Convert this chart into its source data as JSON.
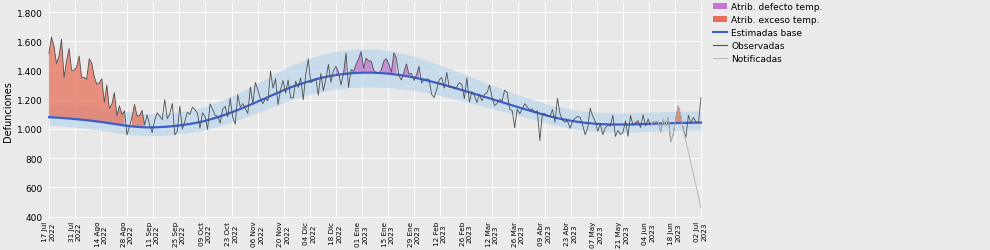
{
  "ylabel": "Defunciones",
  "ylim": [
    380,
    1870
  ],
  "yticks": [
    400,
    600,
    800,
    1000,
    1200,
    1400,
    1600,
    1800
  ],
  "ytick_labels": [
    "400",
    "600",
    "800",
    "1.000",
    "1.200",
    "1.400",
    "1.600",
    "1.800"
  ],
  "legend_labels": [
    "Atrib. defecto temp.",
    "Atrib. exceso temp.",
    "Estimadas base",
    "Observadas",
    "Notificadas"
  ],
  "legend_colors_patch": [
    "#c77dca",
    "#e8705a",
    "#4060b8",
    "#606060",
    "#b8b8b8"
  ],
  "n_points": 260,
  "x_tick_labels": [
    "17 Jul\n2022",
    "31 Jul\n2022",
    "14 Ago\n2022",
    "28 Ago\n2022",
    "11 Sep\n2022",
    "25 Sep\n2022",
    "09 Oct\n2022",
    "23 Oct\n2022",
    "06 Nov\n2022",
    "20 Nov\n2022",
    "04 Dic\n2022",
    "18 Dic\n2022",
    "01 Ene\n2023",
    "15 Ene\n2023",
    "29 Ene\n2023",
    "12 Feb\n2023",
    "26 Feb\n2023",
    "12 Mar\n2023",
    "26 Mar\n2023",
    "09 Abr\n2023",
    "23 Abr\n2023",
    "07 May\n2023",
    "21 May\n2023",
    "04 Jun\n2023",
    "18 Jun\n2023",
    "02 Jul\n2023"
  ],
  "baseline_points": [
    1080,
    1075,
    1068,
    1060,
    1050,
    1038,
    1025,
    1015,
    1010,
    1012,
    1018,
    1028,
    1042,
    1062,
    1088,
    1118,
    1152,
    1188,
    1225,
    1262,
    1295,
    1322,
    1346,
    1364,
    1376,
    1383,
    1385,
    1382,
    1374,
    1362,
    1346,
    1326,
    1304,
    1280,
    1255,
    1230,
    1204,
    1178,
    1152,
    1127,
    1102,
    1080,
    1062,
    1048,
    1038,
    1032,
    1030,
    1030,
    1032,
    1035,
    1038,
    1040,
    1042,
    1043
  ],
  "band_lower_offset": [
    55,
    55,
    56,
    57,
    58,
    58,
    58,
    57,
    57,
    58,
    58,
    58,
    60,
    62,
    65,
    68,
    72,
    76,
    80,
    84,
    88,
    92,
    95,
    97,
    98,
    98,
    98,
    97,
    95,
    92,
    88,
    84,
    80,
    76,
    72,
    68,
    64,
    60,
    57,
    55,
    53,
    52,
    52,
    52,
    52,
    52,
    52,
    52,
    52,
    52,
    52,
    52,
    52,
    52
  ],
  "band_upper_offset": [
    85,
    87,
    90,
    93,
    95,
    96,
    96,
    95,
    93,
    92,
    92,
    93,
    96,
    100,
    106,
    113,
    120,
    128,
    136,
    144,
    150,
    156,
    160,
    162,
    163,
    163,
    162,
    160,
    156,
    150,
    143,
    135,
    127,
    119,
    111,
    103,
    96,
    90,
    85,
    82,
    80,
    79,
    79,
    79,
    79,
    80,
    80,
    80,
    80,
    80,
    80,
    80,
    80,
    80
  ]
}
